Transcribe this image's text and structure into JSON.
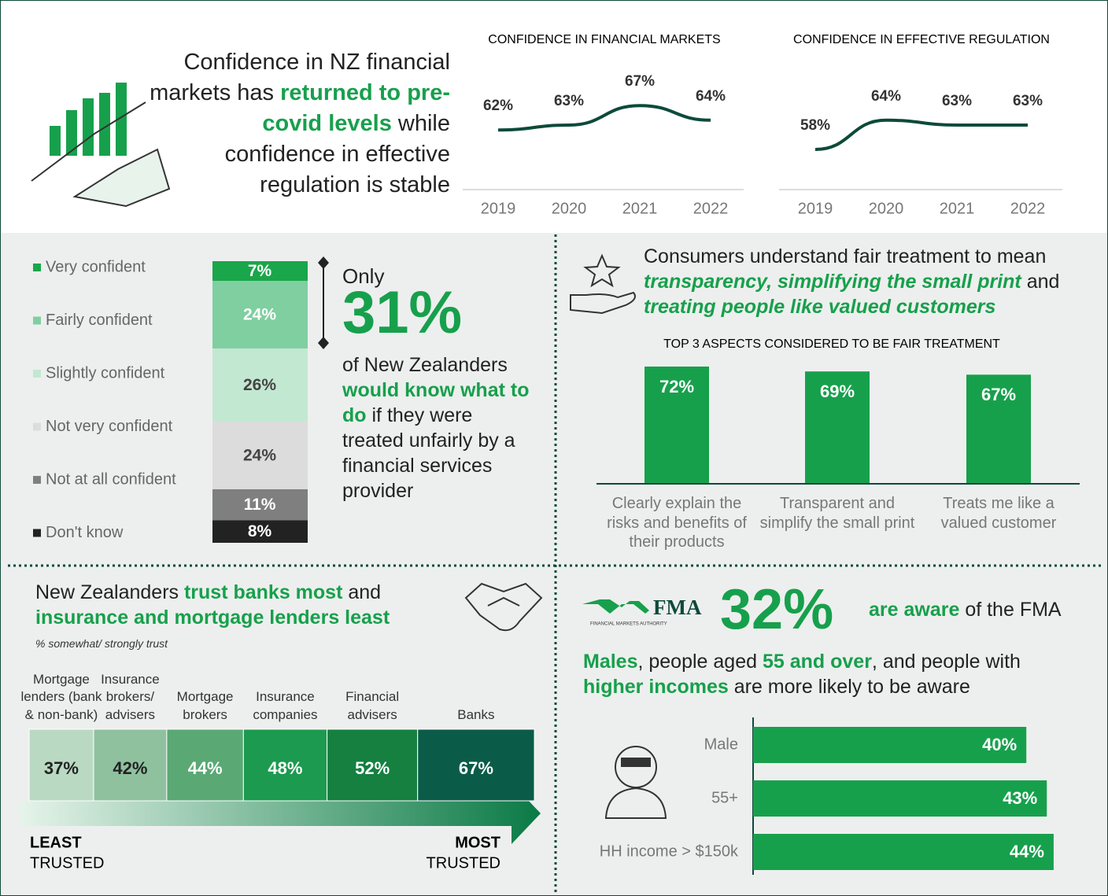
{
  "headline": [
    "Confidence in NZ financial markets has ",
    "returned to pre-covid levels",
    " while confidence in effective regulation is stable"
  ],
  "unfair": {
    "intro": "Only",
    "stat": "31%",
    "text": [
      "of New Zealanders ",
      "would know what to do",
      " if they were treated unfairly by a financial services provider"
    ]
  },
  "fair": {
    "text": [
      "Consumers understand fair treatment to mean ",
      "transparency, simplifying the small print",
      " and ",
      "treating people like valued customers"
    ]
  },
  "trust": {
    "text": [
      "New Zealanders ",
      "trust banks most",
      " and ",
      "insurance and mortgage lenders least"
    ],
    "least": [
      "LEAST",
      "TRUSTED"
    ],
    "most": [
      "MOST",
      "TRUSTED"
    ]
  },
  "fma": {
    "logo": "FMA",
    "logo_sub": "FINANCIAL MARKETS AUTHORITY",
    "stat": "32%",
    "text": [
      "are aware",
      " of the FMA"
    ],
    "detail": [
      "Males",
      ", people aged ",
      "55 and over",
      ", and people with ",
      "higher incomes",
      " are more likely to be aware"
    ]
  },
  "chart_data": [
    {
      "type": "line",
      "title": "CONFIDENCE IN FINANCIAL MARKETS",
      "categories": [
        "2019",
        "2020",
        "2021",
        "2022"
      ],
      "values": [
        62,
        63,
        67,
        64
      ],
      "value_labels": [
        "62%",
        "63%",
        "67%",
        "64%"
      ],
      "color": "#0d4a3a"
    },
    {
      "type": "line",
      "title": "CONFIDENCE IN EFFECTIVE REGULATION",
      "categories": [
        "2019",
        "2020",
        "2021",
        "2022"
      ],
      "values": [
        58,
        64,
        63,
        63
      ],
      "value_labels": [
        "58%",
        "64%",
        "63%",
        "63%"
      ],
      "color": "#0d4a3a"
    },
    {
      "type": "stacked_bar",
      "series": [
        {
          "name": "Very confident",
          "color": "#1aa64a",
          "values": [
            7
          ],
          "value_labels": [
            "7%"
          ]
        },
        {
          "name": "Fairly confident",
          "color": "#7fcfa0",
          "values": [
            24
          ],
          "value_labels": [
            "24%"
          ]
        },
        {
          "name": "Slightly confident",
          "color": "#c3e8d2",
          "values": [
            26
          ],
          "value_labels": [
            "26%"
          ]
        },
        {
          "name": "Not very confident",
          "color": "#dcdcdc",
          "values": [
            24
          ],
          "value_labels": [
            "24%"
          ]
        },
        {
          "name": "Not at all confident",
          "color": "#7f7f7f",
          "values": [
            11
          ],
          "value_labels": [
            "11%"
          ]
        },
        {
          "name": "Don't know",
          "color": "#222222",
          "values": [
            8
          ],
          "value_labels": [
            "8%"
          ]
        }
      ]
    },
    {
      "type": "bar",
      "title": "TOP 3 ASPECTS CONSIDERED TO BE FAIR TREATMENT",
      "categories": [
        "Clearly explain the risks and benefits of their products",
        "Transparent and simplify the small print",
        "Treats me like a valued customer"
      ],
      "values": [
        72,
        69,
        67
      ],
      "value_labels": [
        "72%",
        "69%",
        "67%"
      ],
      "color": "#17a04c"
    },
    {
      "type": "segmented_bar",
      "subtitle": "% somewhat/ strongly trust",
      "categories": [
        "Mortgage lenders (bank & non-bank)",
        "Insurance brokers/ advisers",
        "Mortgage brokers",
        "Insurance companies",
        "Financial advisers",
        "Banks"
      ],
      "values": [
        37,
        42,
        44,
        48,
        52,
        67
      ],
      "value_labels": [
        "37%",
        "42%",
        "44%",
        "48%",
        "52%",
        "67%"
      ],
      "colors": [
        "#b9d9c3",
        "#8fc19f",
        "#5aa874",
        "#1c9a4f",
        "#158040",
        "#0a5c48"
      ]
    },
    {
      "type": "hbar",
      "categories": [
        "Male",
        "55+",
        "HH income > $150k"
      ],
      "values": [
        40,
        43,
        44
      ],
      "value_labels": [
        "40%",
        "43%",
        "44%"
      ],
      "color": "#17a04c"
    }
  ]
}
